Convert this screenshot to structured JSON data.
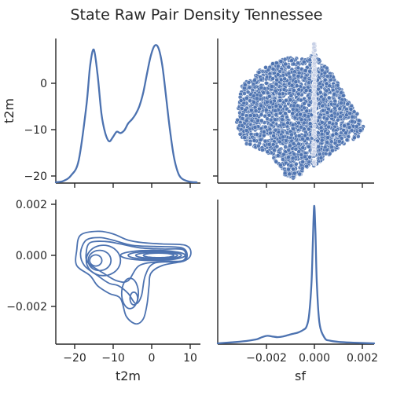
{
  "figure": {
    "title": "State Raw Pair Density Tennessee",
    "series_color": "#4c72b0"
  },
  "chart_data": {
    "type": "pairplot",
    "variables": [
      "t2m",
      "sf"
    ],
    "title": "State Raw Pair Density Tennessee",
    "panels": [
      {
        "id": "t2m-diag",
        "type": "area",
        "kind": "kde",
        "variable": "t2m",
        "xlabel": "",
        "ylabel": "t2m",
        "xlim": [
          -25,
          13
        ],
        "x": [
          -25,
          -23,
          -21,
          -19,
          -17,
          -16,
          -15,
          -14,
          -13,
          -12,
          -11,
          -10,
          -9,
          -8,
          -7,
          -6,
          -5,
          -4,
          -3,
          -2,
          -1,
          0,
          1,
          2,
          3,
          4,
          5,
          6,
          7,
          8,
          10,
          12
        ],
        "density": [
          0.0,
          0.01,
          0.05,
          0.16,
          0.55,
          0.85,
          0.97,
          0.78,
          0.5,
          0.36,
          0.3,
          0.33,
          0.37,
          0.36,
          0.38,
          0.43,
          0.46,
          0.5,
          0.56,
          0.66,
          0.8,
          0.93,
          1.0,
          0.98,
          0.85,
          0.62,
          0.38,
          0.19,
          0.08,
          0.03,
          0.005,
          0.0
        ]
      },
      {
        "id": "t2m-vs-sf",
        "type": "scatter",
        "xlabel": "",
        "ylabel": "",
        "x_variable": "sf",
        "y_variable": "t2m",
        "xlim": [
          -0.0037,
          0.0023
        ],
        "ylim": [
          -21,
          9
        ],
        "yticks": [
          -20,
          -10,
          0
        ],
        "point_count": 2300
      },
      {
        "id": "sf-vs-t2m",
        "type": "contour",
        "kind": "kde",
        "xlabel": "t2m",
        "ylabel": "",
        "x_variable": "t2m",
        "y_variable": "sf",
        "xlim": [
          -25,
          13
        ],
        "ylim": [
          -0.0035,
          0.0022
        ],
        "xticks": [
          -20,
          -10,
          0,
          10
        ],
        "yticks": [
          0.002,
          0.0,
          -0.002
        ]
      },
      {
        "id": "sf-diag",
        "type": "area",
        "kind": "kde",
        "variable": "sf",
        "xlabel": "sf",
        "ylabel": "",
        "xlim": [
          -0.0037,
          0.0023
        ],
        "xticks": [
          -0.002,
          0.0,
          0.002
        ],
        "x": [
          -0.0037,
          -0.003,
          -0.0025,
          -0.0022,
          -0.002,
          -0.0018,
          -0.0016,
          -0.0014,
          -0.0012,
          -0.001,
          -0.0008,
          -0.0006,
          -0.0004,
          -0.0003,
          -0.0002,
          -0.0001,
          -5e-05,
          0.0,
          5e-05,
          0.0001,
          0.0002,
          0.0004,
          0.0006,
          0.001,
          0.0015,
          0.0023
        ],
        "density": [
          0.0,
          0.01,
          0.02,
          0.03,
          0.045,
          0.055,
          0.05,
          0.045,
          0.05,
          0.06,
          0.07,
          0.08,
          0.1,
          0.12,
          0.2,
          0.45,
          0.75,
          1.0,
          0.8,
          0.45,
          0.15,
          0.04,
          0.02,
          0.01,
          0.005,
          0.0
        ]
      }
    ]
  },
  "labels": {
    "t2m_ticks": [
      "0",
      "−10",
      "−20"
    ],
    "sf_yticks": [
      "0.002",
      "0.000",
      "−0.002"
    ],
    "t2m_xticks": [
      "−20",
      "−10",
      "0",
      "10"
    ],
    "sf_xticks": [
      "−0.002",
      "0.000",
      "0.002"
    ],
    "ylabel_top": "t2m",
    "xlabel_left": "t2m",
    "xlabel_right": "sf"
  }
}
